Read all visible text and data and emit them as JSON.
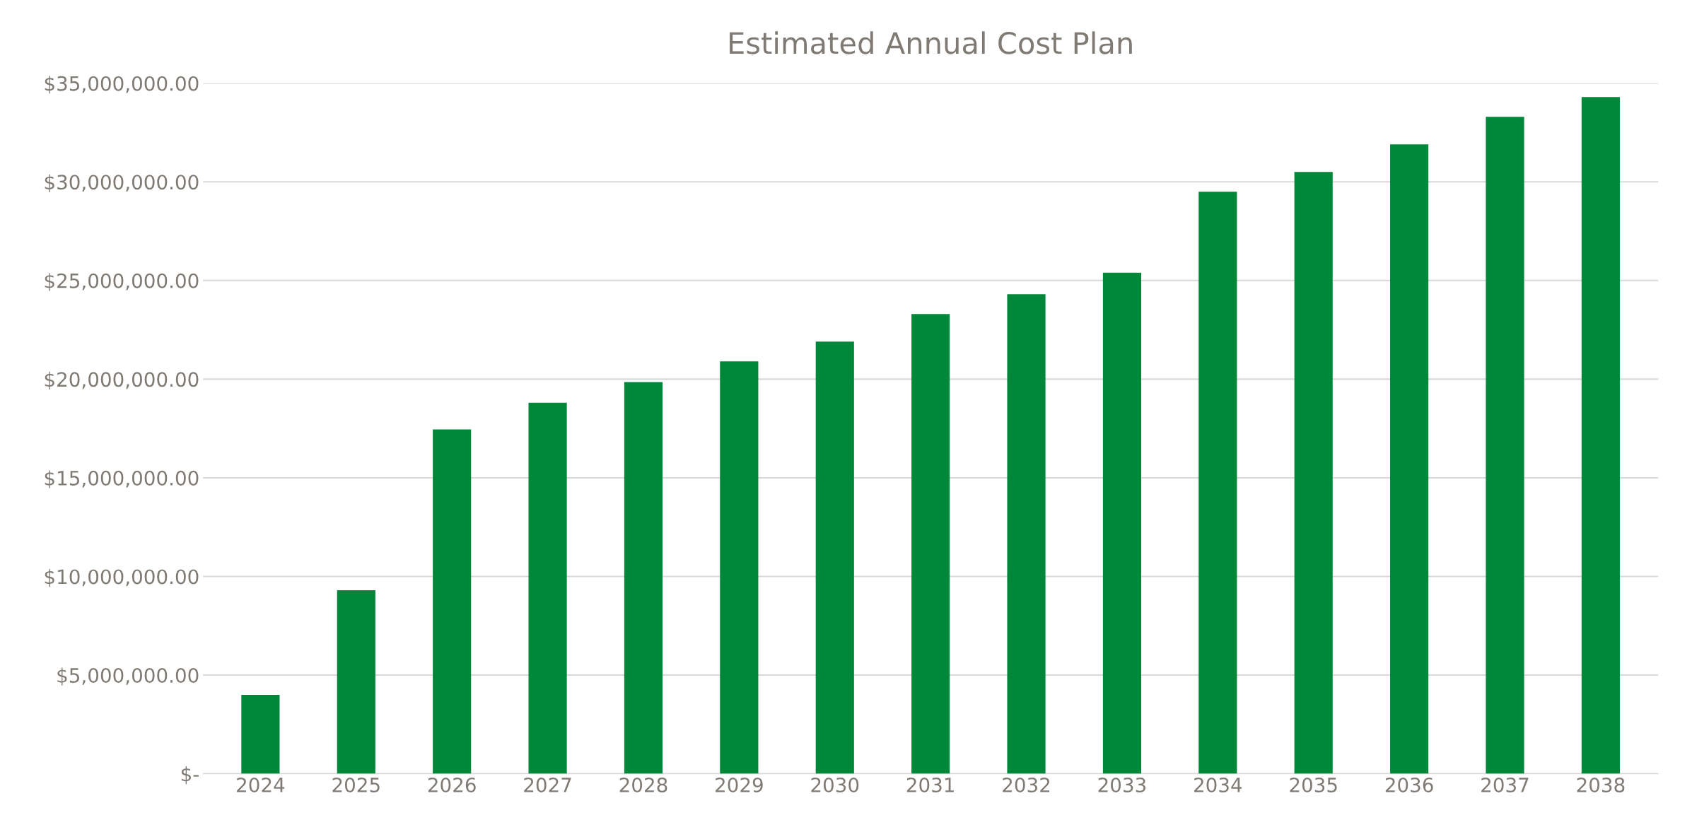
{
  "chart_data": {
    "type": "bar",
    "title": "Estimated Annual Cost Plan",
    "categories": [
      "2024",
      "2025",
      "2026",
      "2027",
      "2028",
      "2029",
      "2030",
      "2031",
      "2032",
      "2033",
      "2034",
      "2035",
      "2036",
      "2037",
      "2038"
    ],
    "values": [
      4000000,
      9300000,
      17450000,
      18800000,
      19850000,
      20900000,
      21900000,
      23300000,
      24300000,
      25400000,
      29500000,
      30500000,
      31900000,
      33300000,
      34300000
    ],
    "color": "#00873a",
    "ylim": [
      0,
      35000000
    ],
    "yticks": [
      {
        "value": 0,
        "label": "$-"
      },
      {
        "value": 5000000,
        "label": "$5,000,000.00"
      },
      {
        "value": 10000000,
        "label": "$10,000,000.00"
      },
      {
        "value": 15000000,
        "label": "$15,000,000.00"
      },
      {
        "value": 20000000,
        "label": "$20,000,000.00"
      },
      {
        "value": 25000000,
        "label": "$25,000,000.00"
      },
      {
        "value": 30000000,
        "label": "$30,000,000.00"
      },
      {
        "value": 35000000,
        "label": "$35,000,000.00"
      }
    ],
    "grid": "y",
    "legend": false
  }
}
